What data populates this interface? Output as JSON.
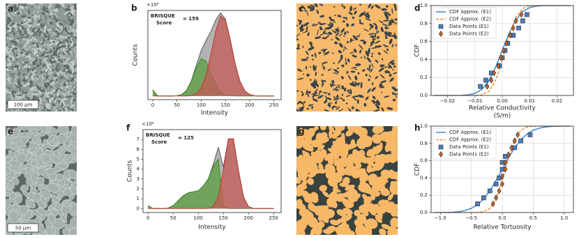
{
  "images": [
    {
      "panel": "a",
      "scale_bar": "100 μm"
    },
    {
      "panel": "c"
    },
    {
      "panel": "e",
      "scale_bar": "50 μm"
    },
    {
      "panel": "g"
    }
  ],
  "chart_data": [
    {
      "type": "area",
      "panel": "b",
      "offset_text": "×10⁶",
      "ylabel": "Counts",
      "xlabel": [
        "Intensity"
      ],
      "annotation": {
        "lines": [
          "BRISQUE",
          "Score"
        ],
        "value_text": "= 159",
        "color": "#e8141c"
      },
      "xlim": [
        -10,
        265
      ],
      "ylim": [
        -0.15,
        3.5
      ],
      "xticks": [
        0,
        50,
        100,
        150,
        200,
        250
      ],
      "grid": false,
      "x": [
        0,
        10,
        20,
        30,
        40,
        50,
        60,
        70,
        80,
        90,
        100,
        110,
        120,
        130,
        140,
        150,
        160,
        170,
        180,
        190,
        200,
        210,
        220,
        230,
        240,
        250
      ],
      "series": [
        {
          "color": "#9a9a9a",
          "edge_color": "#555555",
          "values": [
            0.25,
            0,
            0,
            0,
            0,
            0.01,
            0.06,
            0.24,
            0.64,
            1.26,
            1.86,
            2.27,
            2.64,
            3.11,
            3.4,
            3.14,
            2.31,
            1.33,
            0.6,
            0.21,
            0.06,
            0.01,
            0,
            0,
            0,
            0
          ]
        },
        {
          "color": "#5a9e3f",
          "edge_color": "#3d8a2a",
          "values": [
            0.25,
            0,
            0,
            0,
            0,
            0.01,
            0.06,
            0.24,
            0.62,
            1.16,
            1.53,
            1.42,
            0.94,
            0.44,
            0.14,
            0.03,
            0.01,
            0,
            0,
            0,
            0,
            0,
            0,
            0,
            0,
            0
          ]
        },
        {
          "color": "#c45a55",
          "edge_color": "#c0392b",
          "values": [
            0,
            0,
            0,
            0,
            0,
            0,
            0,
            0,
            0.02,
            0.1,
            0.33,
            0.85,
            1.7,
            2.67,
            3.26,
            3.11,
            2.3,
            1.33,
            0.6,
            0.21,
            0.06,
            0.01,
            0,
            0,
            0,
            0
          ]
        }
      ]
    },
    {
      "type": "cdf",
      "panel": "d",
      "ylabel": "CDF",
      "xlabel": [
        "Relative Conductivity",
        "(S/m)"
      ],
      "xlim": [
        -0.026,
        0.026
      ],
      "ylim": [
        0,
        1.0
      ],
      "xticks": [
        {
          "value": -0.02,
          "label": "−0.02"
        },
        {
          "value": -0.01,
          "label": "−0.01"
        },
        {
          "value": 0,
          "label": "0.00"
        },
        {
          "value": 0.01,
          "label": "0.01"
        },
        {
          "value": 0.02,
          "label": "0.02"
        }
      ],
      "yticks": [
        {
          "value": 0,
          "label": "0.0"
        },
        {
          "value": 0.2,
          "label": "0.2"
        },
        {
          "value": 0.4,
          "label": "0.4"
        },
        {
          "value": 0.6,
          "label": "0.6"
        },
        {
          "value": 0.8,
          "label": "0.8"
        },
        {
          "value": 1.0,
          "label": "1.0"
        }
      ],
      "grid": true,
      "legend": "upper left",
      "series": [
        {
          "name": "CDF Approx. (E1)",
          "color": "#1f77d4",
          "line_style": "solid",
          "x": [
            -0.025,
            -0.0225,
            -0.02,
            -0.0175,
            -0.015,
            -0.0125,
            -0.01,
            -0.0075,
            -0.005,
            -0.0025,
            0,
            0.0025,
            0.005,
            0.0075,
            0.01,
            0.0125,
            0.015,
            0.0175,
            0.02,
            0.0225,
            0.025
          ],
          "values": [
            0,
            0,
            0,
            0.0002,
            0.001,
            0.006,
            0.023,
            0.067,
            0.159,
            0.309,
            0.5,
            0.691,
            0.841,
            0.933,
            0.977,
            0.994,
            0.999,
            1,
            1,
            1,
            1
          ]
        },
        {
          "name": "CDF Approx. (E2)",
          "color": "#f07f1a",
          "line_style": "dashed",
          "x": [
            -0.025,
            -0.0225,
            -0.02,
            -0.0175,
            -0.015,
            -0.0125,
            -0.01,
            -0.0075,
            -0.005,
            -0.0025,
            0,
            0.0025,
            0.005,
            0.0075,
            0.01,
            0.0125,
            0.015,
            0.0175,
            0.02,
            0.0225,
            0.025
          ],
          "values": [
            0,
            0,
            0,
            0,
            0,
            0.0001,
            0.001,
            0.008,
            0.043,
            0.159,
            0.387,
            0.666,
            0.873,
            0.968,
            0.995,
            1,
            1,
            1,
            1,
            1,
            1
          ]
        },
        {
          "name": "Data Points (E1)",
          "color": "#4a7fc1",
          "marker": "square",
          "x": [
            -0.008,
            -0.006,
            -0.004,
            -0.001,
            0,
            0.001,
            0.002,
            0.004,
            0.006,
            0.0075,
            0.009
          ],
          "values": [
            0.1,
            0.17,
            0.25,
            0.33,
            0.42,
            0.5,
            0.58,
            0.67,
            0.75,
            0.83,
            0.9
          ]
        },
        {
          "name": "Data Points (E2)",
          "color": "#c9642c",
          "marker": "diamond",
          "x": [
            -0.0055,
            -0.004,
            -0.003,
            -0.0015,
            -0.0005,
            0.0005,
            0.0015,
            0.003,
            0.004,
            0.005,
            0.007
          ],
          "values": [
            0.1,
            0.17,
            0.25,
            0.33,
            0.42,
            0.5,
            0.58,
            0.67,
            0.75,
            0.83,
            0.9
          ]
        }
      ]
    },
    {
      "type": "area",
      "panel": "f",
      "offset_text": "×10⁶",
      "ylabel": "Counts",
      "xlabel": [
        "Intensity"
      ],
      "annotation": {
        "lines": [
          "BRISQUE",
          "Score"
        ],
        "value_text": "= 125",
        "color": "#e8141c"
      },
      "xlim": [
        -10,
        265
      ],
      "ylim": [
        -0.4,
        8
      ],
      "xticks": [
        0,
        50,
        100,
        150,
        200,
        250
      ],
      "yticks": [
        0,
        1,
        2,
        3,
        4,
        5,
        6,
        7
      ],
      "grid": false,
      "x": [
        0,
        10,
        20,
        30,
        40,
        50,
        60,
        70,
        80,
        90,
        100,
        110,
        120,
        130,
        140,
        150,
        160,
        170,
        180,
        190,
        200,
        210,
        220,
        230,
        240,
        250
      ],
      "series": [
        {
          "color": "#9a9a9a",
          "edge_color": "#555555",
          "values": [
            0.3,
            0,
            0,
            0,
            0.05,
            0.3,
            0.8,
            1.3,
            1.6,
            1.7,
            1.8,
            2.3,
            3.02,
            4.5,
            6.2,
            4.2,
            7.06,
            7.06,
            3.9,
            1.2,
            0.2,
            0.02,
            0,
            0,
            0,
            0
          ]
        },
        {
          "color": "#5a9e3f",
          "edge_color": "#3d8a2a",
          "values": [
            0.3,
            0,
            0,
            0,
            0.05,
            0.3,
            0.8,
            1.3,
            1.6,
            1.7,
            1.8,
            2.3,
            3.0,
            4.3,
            5.0,
            0.3,
            0,
            0,
            0,
            0,
            0,
            0,
            0,
            0,
            0,
            0
          ]
        },
        {
          "color": "#c45a55",
          "edge_color": "#c0392b",
          "values": [
            0,
            0,
            0,
            0,
            0,
            0,
            0,
            0,
            0,
            0,
            0,
            0,
            0.02,
            0.2,
            1.2,
            3.9,
            7.06,
            7.06,
            3.9,
            1.2,
            0.2,
            0.02,
            0,
            0,
            0,
            0
          ]
        }
      ]
    },
    {
      "type": "cdf",
      "panel": "h",
      "ylabel": "CDF",
      "xlabel": [
        "Relative Tortuosity"
      ],
      "xlim": [
        -1.15,
        1.15
      ],
      "ylim": [
        0,
        1.0
      ],
      "xticks": [
        {
          "value": -1.0,
          "label": "−1.0"
        },
        {
          "value": -0.5,
          "label": "−0.5"
        },
        {
          "value": 0,
          "label": "0.0"
        },
        {
          "value": 0.5,
          "label": "0.5"
        },
        {
          "value": 1.0,
          "label": "1.0"
        }
      ],
      "yticks": [
        {
          "value": 0,
          "label": "0.0"
        },
        {
          "value": 0.2,
          "label": "0.2"
        },
        {
          "value": 0.4,
          "label": "0.4"
        },
        {
          "value": 0.6,
          "label": "0.6"
        },
        {
          "value": 0.8,
          "label": "0.8"
        },
        {
          "value": 1.0,
          "label": "1.0"
        }
      ],
      "grid": true,
      "legend": "upper left",
      "series": [
        {
          "name": "CDF Approx. (E1)",
          "color": "#1f77d4",
          "line_style": "solid",
          "x": [
            -1.1,
            -1.0,
            -0.9,
            -0.8,
            -0.7,
            -0.6,
            -0.5,
            -0.4,
            -0.3,
            -0.2,
            -0.1,
            0,
            0.1,
            0.2,
            0.3,
            0.4,
            0.5,
            0.6,
            0.7,
            0.8,
            0.9,
            1.0,
            1.1
          ],
          "values": [
            0.0001,
            0.0004,
            0.0013,
            0.004,
            0.01,
            0.023,
            0.048,
            0.091,
            0.159,
            0.252,
            0.369,
            0.5,
            0.631,
            0.748,
            0.841,
            0.909,
            0.952,
            0.977,
            0.99,
            0.996,
            0.9987,
            0.9996,
            0.9999
          ]
        },
        {
          "name": "CDF Approx. (E2)",
          "color": "#f07f1a",
          "line_style": "dashed",
          "x": [
            -1.1,
            -1.0,
            -0.9,
            -0.8,
            -0.7,
            -0.6,
            -0.5,
            -0.4,
            -0.3,
            -0.2,
            -0.1,
            0,
            0.1,
            0.2,
            0.3,
            0.4,
            0.5,
            0.6,
            0.7,
            0.8,
            0.9,
            1.0,
            1.1
          ],
          "values": [
            0,
            0,
            0,
            0,
            0,
            0,
            0.0001,
            0.0013,
            0.01,
            0.048,
            0.159,
            0.369,
            0.631,
            0.841,
            0.952,
            0.99,
            0.9987,
            0.9999,
            1,
            1,
            1,
            1,
            1
          ]
        },
        {
          "name": "Data Points (E1)",
          "color": "#4a7fc1",
          "marker": "square",
          "x": [
            -0.4,
            -0.3,
            -0.2,
            -0.1,
            -0.05,
            0,
            0,
            0.05,
            0.2,
            0.3,
            0.45
          ],
          "values": [
            0.1,
            0.17,
            0.25,
            0.33,
            0.4,
            0.5,
            0.58,
            0.65,
            0.75,
            0.83,
            0.9
          ]
        },
        {
          "name": "Data Points (E2)",
          "color": "#c9642c",
          "marker": "diamond",
          "x": [
            -0.15,
            -0.1,
            -0.05,
            0,
            0,
            0.05,
            0.05,
            0.1,
            0.15,
            0.2,
            0.25
          ],
          "values": [
            0.1,
            0.17,
            0.25,
            0.33,
            0.42,
            0.5,
            0.58,
            0.67,
            0.75,
            0.83,
            0.9
          ]
        }
      ]
    }
  ]
}
